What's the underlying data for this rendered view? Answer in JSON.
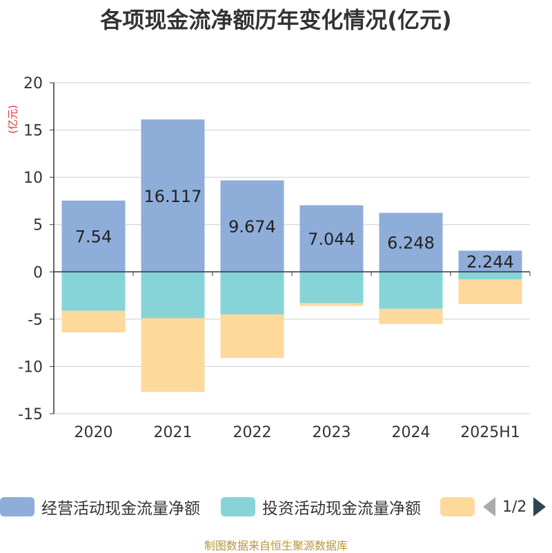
{
  "title": "各项现金流净额历年变化情况(亿元)",
  "unit_label": "(亿元)",
  "footer": "制图数据来自恒生聚源数据库",
  "legend": {
    "items": [
      {
        "label": "经营活动现金流量净额",
        "color": "#8eadd9"
      },
      {
        "label": "投资活动现金流量净额",
        "color": "#86d4d8"
      },
      {
        "label": "",
        "color": "#fdd99b"
      }
    ],
    "pager": "1/2"
  },
  "chart_data": {
    "type": "bar",
    "stacked": true,
    "categories": [
      "2020",
      "2021",
      "2022",
      "2023",
      "2024",
      "2025H1"
    ],
    "series": [
      {
        "name": "经营活动现金流量净额",
        "color": "#8eadd9",
        "values": [
          7.54,
          16.117,
          9.674,
          7.044,
          6.248,
          2.244
        ],
        "show_labels": true
      },
      {
        "name": "投资活动现金流量净额",
        "color": "#86d4d8",
        "values": [
          -4.1,
          -4.9,
          -4.5,
          -3.3,
          -3.9,
          -0.8
        ],
        "show_labels": false
      },
      {
        "name": "",
        "color": "#fdd99b",
        "values": [
          -2.3,
          -7.8,
          -4.6,
          -0.3,
          -1.6,
          -2.6
        ],
        "show_labels": false
      }
    ],
    "ylim": [
      -15,
      20
    ],
    "yticks": [
      20,
      15,
      10,
      5,
      0,
      -5,
      -10,
      -15
    ],
    "grid": true,
    "legend_position": "bottom"
  }
}
